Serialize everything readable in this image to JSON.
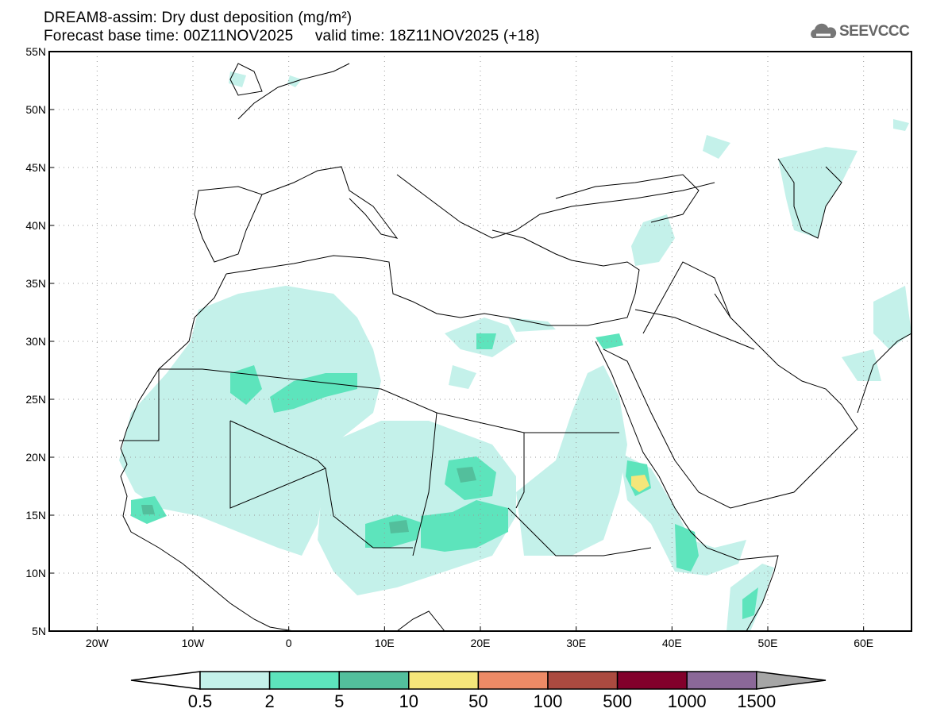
{
  "title": {
    "line1": "DREAM8-assim: Dry dust deposition (mg/m²)",
    "base_time": "Forecast base time: 00Z11NOV2025",
    "valid_time": "valid time: 18Z11NOV2025 (+18)"
  },
  "logo": {
    "text": "SEEVCCC",
    "icon": "cloud-icon"
  },
  "map": {
    "lon_range": [
      -25,
      65
    ],
    "lat_range": [
      5,
      55
    ],
    "lon_ticks": [
      {
        "v": -20,
        "label": "20W"
      },
      {
        "v": -10,
        "label": "10W"
      },
      {
        "v": 0,
        "label": "0"
      },
      {
        "v": 10,
        "label": "10E"
      },
      {
        "v": 20,
        "label": "20E"
      },
      {
        "v": 30,
        "label": "30E"
      },
      {
        "v": 40,
        "label": "40E"
      },
      {
        "v": 50,
        "label": "50E"
      },
      {
        "v": 60,
        "label": "60E"
      }
    ],
    "lat_ticks": [
      {
        "v": 5,
        "label": "5N"
      },
      {
        "v": 10,
        "label": "10N"
      },
      {
        "v": 15,
        "label": "15N"
      },
      {
        "v": 20,
        "label": "20N"
      },
      {
        "v": 25,
        "label": "25N"
      },
      {
        "v": 30,
        "label": "30N"
      },
      {
        "v": 35,
        "label": "35N"
      },
      {
        "v": 40,
        "label": "40N"
      },
      {
        "v": 45,
        "label": "45N"
      },
      {
        "v": 50,
        "label": "50N"
      },
      {
        "v": 55,
        "label": "55N"
      }
    ]
  },
  "legend": {
    "under_color": "#ffffff",
    "over_color": "#a6a6a6",
    "bins": [
      {
        "color": "#c4f1ea"
      },
      {
        "color": "#5de4bc"
      },
      {
        "color": "#53bf9c"
      },
      {
        "color": "#f5e67a"
      },
      {
        "color": "#ec8a66"
      },
      {
        "color": "#ab4a40"
      },
      {
        "color": "#82002b"
      },
      {
        "color": "#8b6898"
      }
    ],
    "labels": [
      "0.5",
      "2",
      "5",
      "10",
      "50",
      "100",
      "500",
      "1000",
      "1500"
    ]
  }
}
